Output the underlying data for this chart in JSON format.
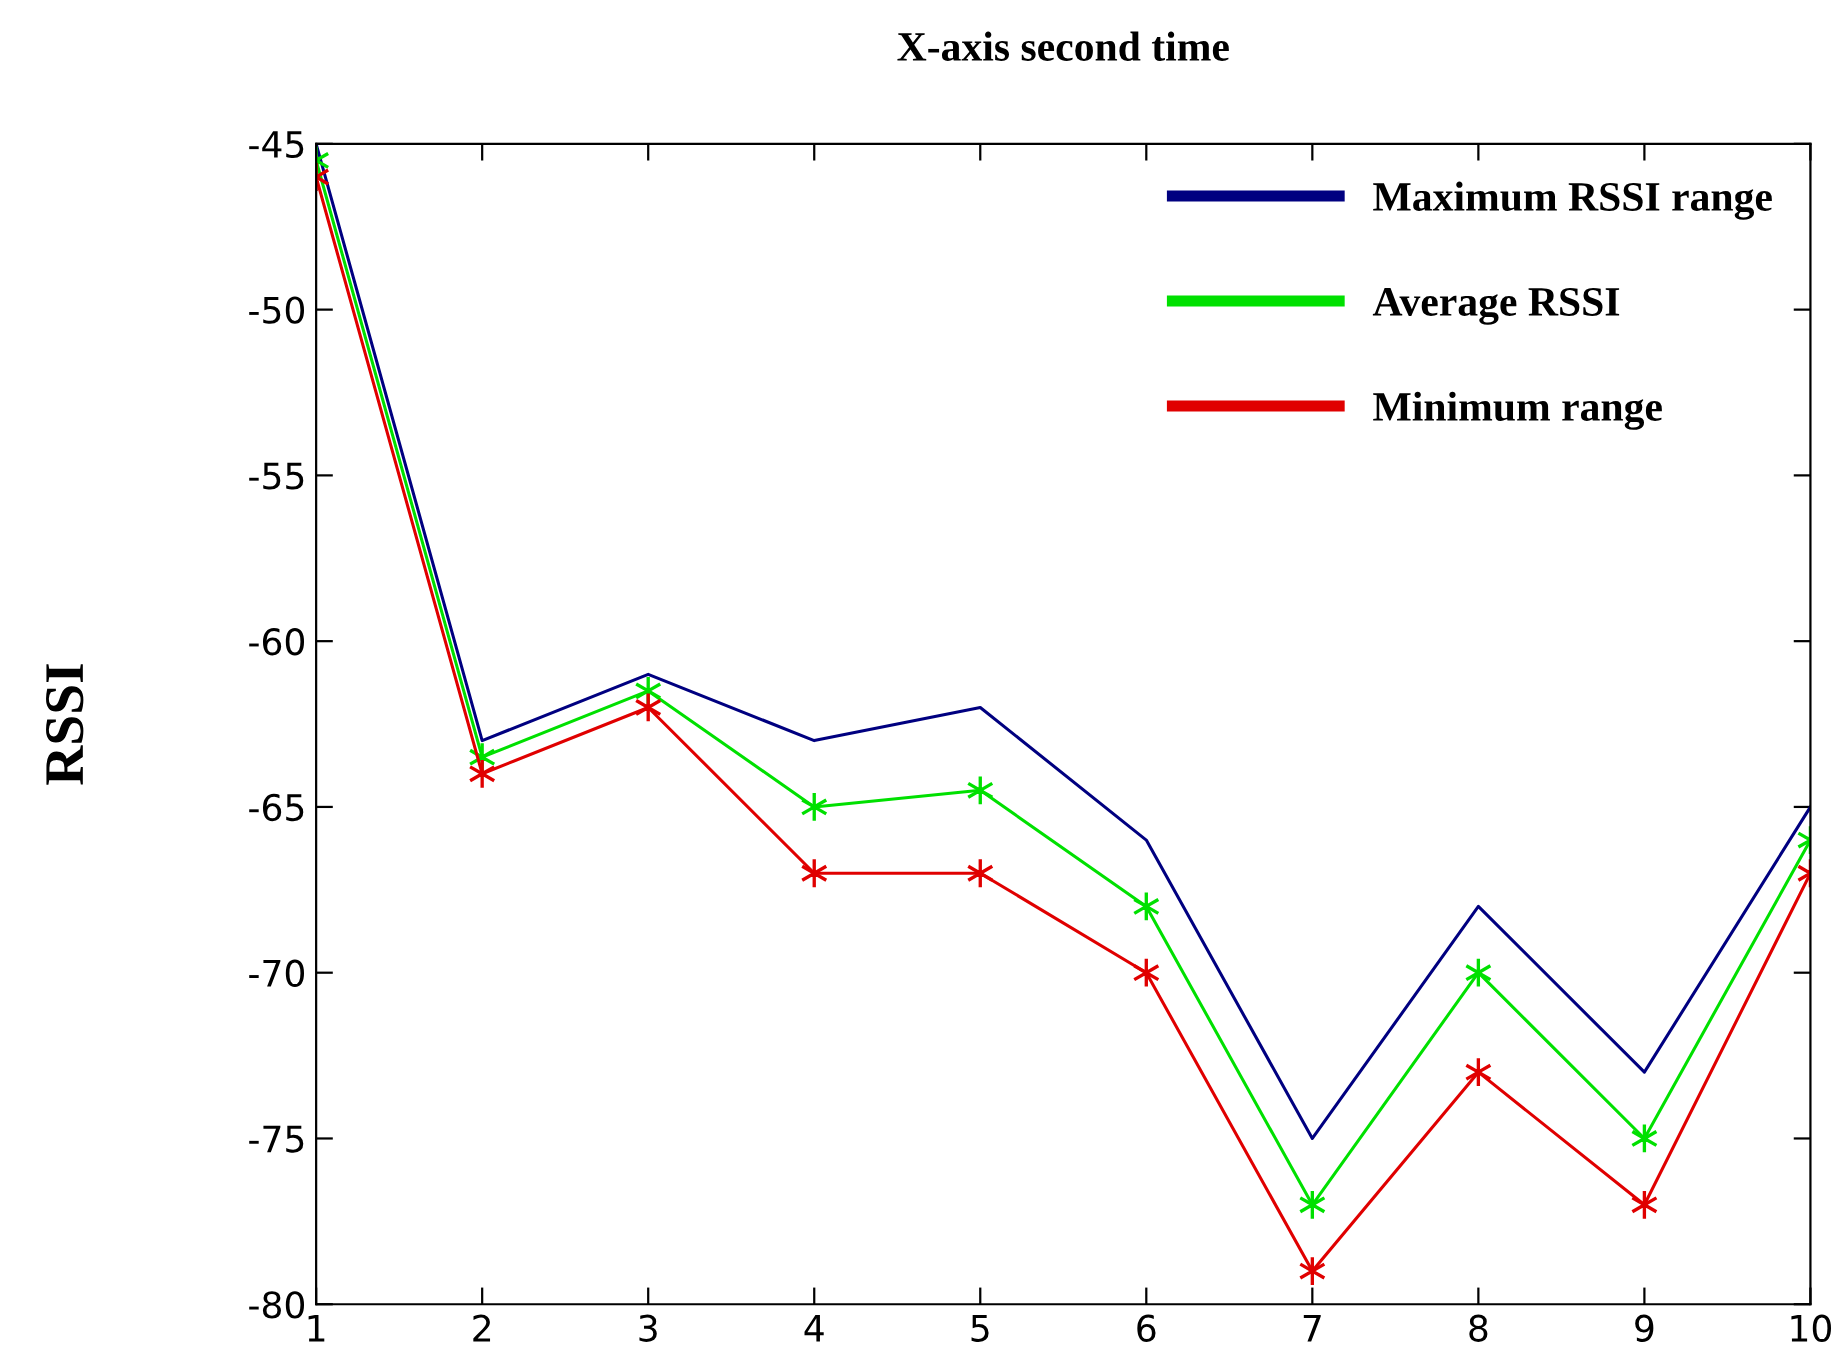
{
  "chart_data": {
    "type": "line",
    "title": "X-axis second time",
    "ylabel": "RSSI",
    "x": [
      1,
      2,
      3,
      4,
      5,
      6,
      7,
      8,
      9,
      10
    ],
    "series": [
      {
        "name": "Maximum RSSI range",
        "color": "#000080",
        "marker": "none",
        "values": [
          -45,
          -63,
          -61,
          -63,
          -62,
          -66,
          -75,
          -68,
          -73,
          -65
        ]
      },
      {
        "name": "Average RSSI",
        "color": "#00e000",
        "marker": "cross",
        "values": [
          -45.5,
          -63.5,
          -61.5,
          -65,
          -64.5,
          -68,
          -77,
          -70,
          -75,
          -66
        ]
      },
      {
        "name": "Minimum range",
        "color": "#e00000",
        "marker": "cross",
        "values": [
          -46,
          -64,
          -62,
          -67,
          -67,
          -70,
          -79,
          -73,
          -77,
          -67
        ]
      }
    ],
    "xlim": [
      1,
      10
    ],
    "xticks": [
      1,
      2,
      3,
      4,
      5,
      6,
      7,
      8,
      9,
      10
    ],
    "ylim": [
      -80,
      -45
    ],
    "yticks": [
      -80,
      -75,
      -70,
      -65,
      -60,
      -55,
      -50,
      -45
    ],
    "grid": false,
    "legend": "top right",
    "line_style": "solid"
  }
}
